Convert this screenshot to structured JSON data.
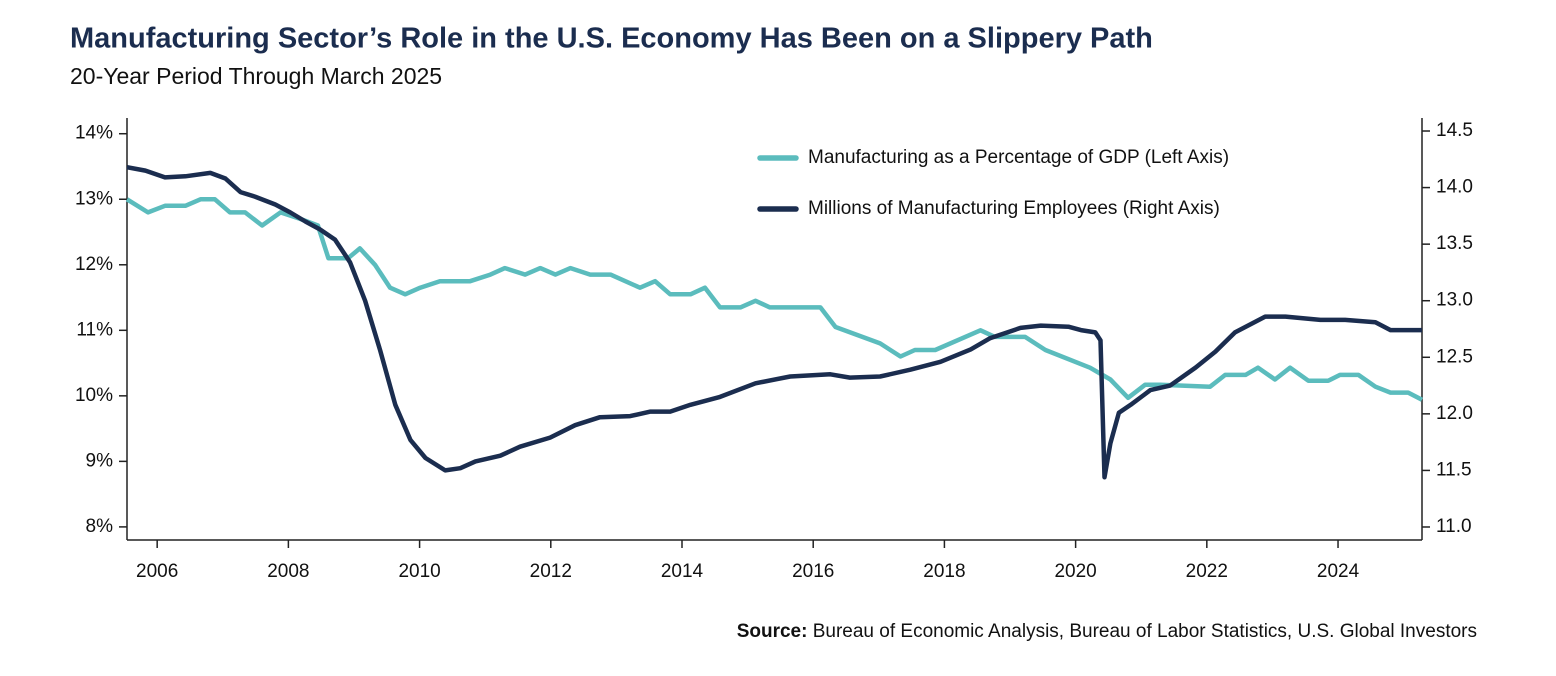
{
  "chart_data": {
    "type": "line",
    "title": "Manufacturing Sector’s Role in the U.S. Economy Has Been on a Slippery Path",
    "subtitle": "20-Year Period Through March 2025",
    "source_label": "Source:",
    "source": "Bureau of Economic Analysis, Bureau of Labor Statistics, U.S. Global Investors",
    "xlim": [
      2005.54,
      2025.28
    ],
    "xticks": [
      2006,
      2008,
      2010,
      2012,
      2014,
      2016,
      2018,
      2020,
      2022,
      2024
    ],
    "ylim": [
      7.8,
      14.24
    ],
    "yticks": [
      {
        "value": 8,
        "label": "8%"
      },
      {
        "value": 9,
        "label": "9%"
      },
      {
        "value": 10,
        "label": "10%"
      },
      {
        "value": 11,
        "label": "11%"
      },
      {
        "value": 12,
        "label": "12%"
      },
      {
        "value": 13,
        "label": "13%"
      },
      {
        "value": 14,
        "label": "14%"
      }
    ],
    "y2lim": [
      10.885,
      14.615
    ],
    "y2ticks": [
      {
        "value": 11,
        "label": "11.0"
      },
      11.5,
      {
        "value": 12,
        "label": "12.0"
      },
      12.5,
      {
        "value": 13,
        "label": "13.0"
      },
      13.5,
      {
        "value": 14,
        "label": "14.0"
      },
      14.5
    ],
    "legend": "top-right",
    "series": [
      {
        "name": "Manufacturing as a Percentage of GDP (Left Axis)",
        "color": "#5bbcbd",
        "axis": "y",
        "x": [
          2005.54,
          2005.86,
          2006.12,
          2006.43,
          2006.66,
          2006.88,
          2007.11,
          2007.34,
          2007.6,
          2007.88,
          2008.18,
          2008.45,
          2008.61,
          2008.91,
          2009.09,
          2009.32,
          2009.55,
          2009.78,
          2010.01,
          2010.31,
          2010.77,
          2011.08,
          2011.3,
          2011.61,
          2011.84,
          2012.07,
          2012.3,
          2012.6,
          2012.91,
          2013.36,
          2013.59,
          2013.82,
          2014.13,
          2014.35,
          2014.58,
          2014.89,
          2015.12,
          2015.34,
          2016.11,
          2016.34,
          2017.02,
          2017.33,
          2017.55,
          2017.86,
          2018.55,
          2018.77,
          2019.23,
          2019.54,
          2020.22,
          2020.53,
          2020.8,
          2021.06,
          2021.29,
          2022.05,
          2022.28,
          2022.59,
          2022.78,
          2023.04,
          2023.27,
          2023.55,
          2023.85,
          2024.03,
          2024.31,
          2024.57,
          2024.8,
          2025.07,
          2025.28
        ],
        "values": [
          13.0,
          12.8,
          12.9,
          12.9,
          13.0,
          13.0,
          12.8,
          12.8,
          12.6,
          12.8,
          12.7,
          12.6,
          12.1,
          12.1,
          12.25,
          12.0,
          11.65,
          11.55,
          11.65,
          11.75,
          11.75,
          11.85,
          11.95,
          11.85,
          11.95,
          11.85,
          11.95,
          11.85,
          11.85,
          11.65,
          11.75,
          11.55,
          11.55,
          11.65,
          11.35,
          11.35,
          11.45,
          11.35,
          11.35,
          11.05,
          10.8,
          10.6,
          10.7,
          10.7,
          11.0,
          10.9,
          10.9,
          10.7,
          10.43,
          10.25,
          9.97,
          10.17,
          10.17,
          10.14,
          10.32,
          10.32,
          10.43,
          10.25,
          10.43,
          10.23,
          10.23,
          10.32,
          10.32,
          10.14,
          10.05,
          10.05,
          9.94
        ]
      },
      {
        "name": "Millions of Manufacturing Employees (Right Axis)",
        "color": "#1b2d4f",
        "axis": "y2",
        "x": [
          2005.54,
          2005.82,
          2006.12,
          2006.43,
          2006.81,
          2007.04,
          2007.27,
          2007.49,
          2007.8,
          2008.03,
          2008.26,
          2008.48,
          2008.71,
          2008.94,
          2009.17,
          2009.4,
          2009.63,
          2009.86,
          2010.09,
          2010.39,
          2010.62,
          2010.85,
          2011.23,
          2011.53,
          2011.99,
          2012.37,
          2012.75,
          2013.21,
          2013.52,
          2013.82,
          2014.13,
          2014.58,
          2015.12,
          2015.65,
          2016.26,
          2016.56,
          2017.02,
          2017.48,
          2017.94,
          2018.4,
          2018.7,
          2019.16,
          2019.47,
          2019.89,
          2020.08,
          2020.3,
          2020.38,
          2020.44,
          2020.53,
          2020.66,
          2020.84,
          2021.14,
          2021.44,
          2021.83,
          2022.13,
          2022.43,
          2022.89,
          2023.2,
          2023.73,
          2024.11,
          2024.57,
          2024.8,
          2025.28
        ],
        "values": [
          14.18,
          14.15,
          14.09,
          14.1,
          14.13,
          14.08,
          13.96,
          13.92,
          13.85,
          13.78,
          13.7,
          13.63,
          13.54,
          13.34,
          13.0,
          12.56,
          12.08,
          11.77,
          11.61,
          11.5,
          11.52,
          11.58,
          11.63,
          11.71,
          11.79,
          11.9,
          11.97,
          11.98,
          12.02,
          12.02,
          12.08,
          12.15,
          12.27,
          12.33,
          12.35,
          12.32,
          12.33,
          12.39,
          12.46,
          12.57,
          12.67,
          12.76,
          12.78,
          12.77,
          12.74,
          12.72,
          12.65,
          11.44,
          11.74,
          12.01,
          12.08,
          12.21,
          12.25,
          12.41,
          12.55,
          12.72,
          12.86,
          12.86,
          12.83,
          12.83,
          12.81,
          12.74,
          12.74
        ]
      }
    ]
  }
}
